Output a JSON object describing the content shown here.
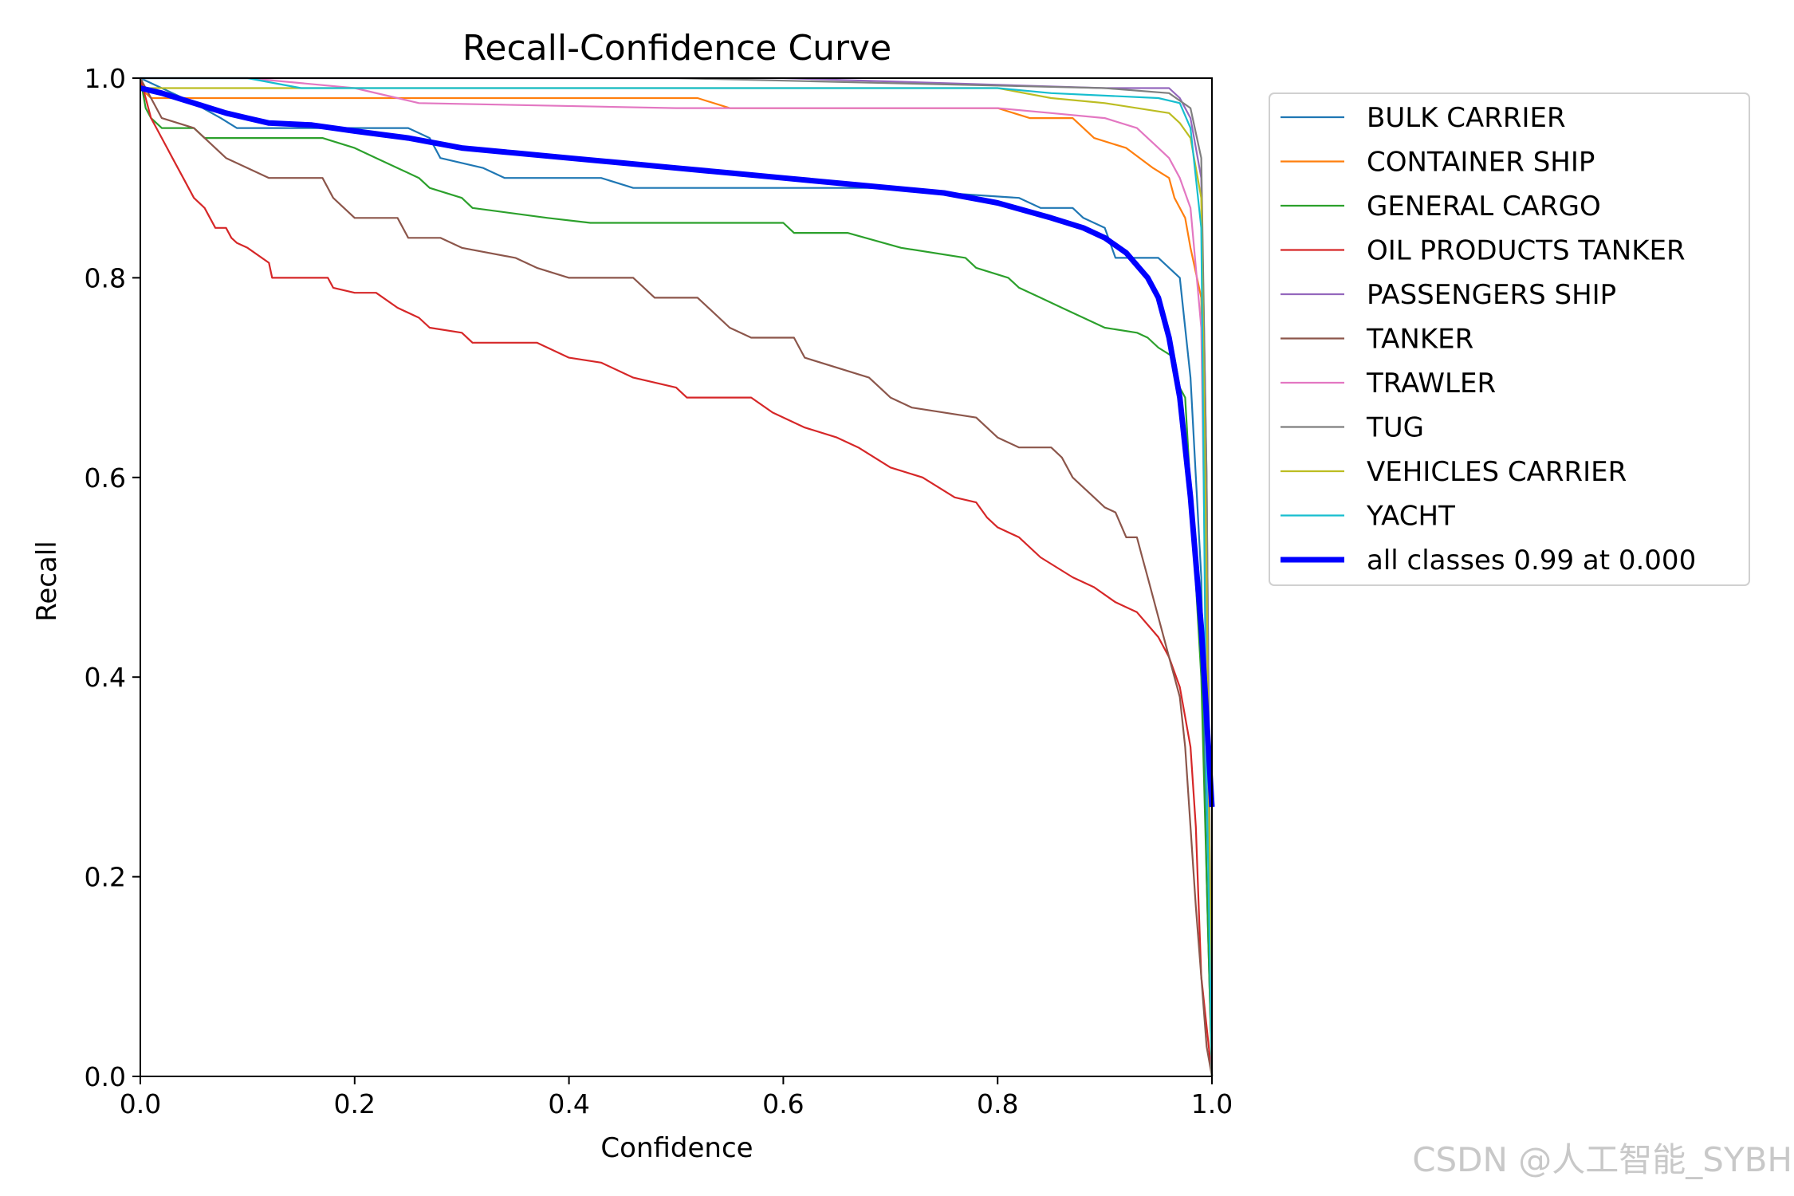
{
  "chart_data": {
    "type": "line",
    "title": "Recall-Confidence Curve",
    "xlabel": "Confidence",
    "ylabel": "Recall",
    "xlim": [
      0,
      1
    ],
    "ylim": [
      0,
      1
    ],
    "xticks": [
      "0.0",
      "0.2",
      "0.4",
      "0.6",
      "0.8",
      "1.0"
    ],
    "yticks": [
      "0.0",
      "0.2",
      "0.4",
      "0.6",
      "0.8",
      "1.0"
    ],
    "grid": false,
    "legend_position": "outside-right",
    "series": [
      {
        "name": "BULK CARRIER",
        "color": "#1f77b4",
        "points": [
          [
            0,
            1.0
          ],
          [
            0.02,
            0.99
          ],
          [
            0.05,
            0.975
          ],
          [
            0.075,
            0.96
          ],
          [
            0.09,
            0.95
          ],
          [
            0.25,
            0.95
          ],
          [
            0.27,
            0.94
          ],
          [
            0.28,
            0.92
          ],
          [
            0.32,
            0.91
          ],
          [
            0.34,
            0.9
          ],
          [
            0.43,
            0.9
          ],
          [
            0.46,
            0.89
          ],
          [
            0.7,
            0.89
          ],
          [
            0.75,
            0.885
          ],
          [
            0.82,
            0.88
          ],
          [
            0.84,
            0.87
          ],
          [
            0.87,
            0.87
          ],
          [
            0.88,
            0.86
          ],
          [
            0.9,
            0.85
          ],
          [
            0.91,
            0.82
          ],
          [
            0.95,
            0.82
          ],
          [
            0.97,
            0.8
          ],
          [
            0.98,
            0.7
          ],
          [
            0.99,
            0.5
          ],
          [
            0.995,
            0.2
          ],
          [
            1.0,
            0.0
          ]
        ]
      },
      {
        "name": "CONTAINER SHIP",
        "color": "#ff7f0e",
        "points": [
          [
            0,
            0.99
          ],
          [
            0.01,
            0.98
          ],
          [
            0.52,
            0.98
          ],
          [
            0.55,
            0.97
          ],
          [
            0.8,
            0.97
          ],
          [
            0.83,
            0.96
          ],
          [
            0.87,
            0.96
          ],
          [
            0.89,
            0.94
          ],
          [
            0.92,
            0.93
          ],
          [
            0.945,
            0.91
          ],
          [
            0.96,
            0.9
          ],
          [
            0.965,
            0.88
          ],
          [
            0.975,
            0.86
          ],
          [
            0.98,
            0.83
          ],
          [
            0.99,
            0.78
          ],
          [
            0.995,
            0.5
          ],
          [
            1.0,
            0.0
          ]
        ]
      },
      {
        "name": "GENERAL CARGO",
        "color": "#2ca02c",
        "points": [
          [
            0,
            1.0
          ],
          [
            0.005,
            0.97
          ],
          [
            0.01,
            0.96
          ],
          [
            0.02,
            0.95
          ],
          [
            0.05,
            0.95
          ],
          [
            0.06,
            0.94
          ],
          [
            0.17,
            0.94
          ],
          [
            0.2,
            0.93
          ],
          [
            0.22,
            0.92
          ],
          [
            0.24,
            0.91
          ],
          [
            0.26,
            0.9
          ],
          [
            0.27,
            0.89
          ],
          [
            0.3,
            0.88
          ],
          [
            0.31,
            0.87
          ],
          [
            0.38,
            0.86
          ],
          [
            0.42,
            0.855
          ],
          [
            0.6,
            0.855
          ],
          [
            0.61,
            0.845
          ],
          [
            0.66,
            0.845
          ],
          [
            0.71,
            0.83
          ],
          [
            0.77,
            0.82
          ],
          [
            0.78,
            0.81
          ],
          [
            0.81,
            0.8
          ],
          [
            0.82,
            0.79
          ],
          [
            0.84,
            0.78
          ],
          [
            0.86,
            0.77
          ],
          [
            0.88,
            0.76
          ],
          [
            0.9,
            0.75
          ],
          [
            0.93,
            0.745
          ],
          [
            0.94,
            0.74
          ],
          [
            0.95,
            0.73
          ],
          [
            0.965,
            0.72
          ],
          [
            0.97,
            0.69
          ],
          [
            0.975,
            0.68
          ],
          [
            0.99,
            0.4
          ],
          [
            1.0,
            0.0
          ]
        ]
      },
      {
        "name": "OIL PRODUCTS TANKER",
        "color": "#d62728",
        "points": [
          [
            0,
            1.0
          ],
          [
            0.005,
            0.98
          ],
          [
            0.01,
            0.96
          ],
          [
            0.015,
            0.95
          ],
          [
            0.02,
            0.94
          ],
          [
            0.025,
            0.93
          ],
          [
            0.03,
            0.92
          ],
          [
            0.04,
            0.9
          ],
          [
            0.05,
            0.88
          ],
          [
            0.06,
            0.87
          ],
          [
            0.07,
            0.85
          ],
          [
            0.08,
            0.85
          ],
          [
            0.085,
            0.84
          ],
          [
            0.09,
            0.835
          ],
          [
            0.1,
            0.83
          ],
          [
            0.12,
            0.815
          ],
          [
            0.123,
            0.8
          ],
          [
            0.175,
            0.8
          ],
          [
            0.18,
            0.79
          ],
          [
            0.2,
            0.785
          ],
          [
            0.22,
            0.785
          ],
          [
            0.24,
            0.77
          ],
          [
            0.26,
            0.76
          ],
          [
            0.27,
            0.75
          ],
          [
            0.3,
            0.745
          ],
          [
            0.31,
            0.735
          ],
          [
            0.37,
            0.735
          ],
          [
            0.4,
            0.72
          ],
          [
            0.43,
            0.715
          ],
          [
            0.46,
            0.7
          ],
          [
            0.5,
            0.69
          ],
          [
            0.51,
            0.68
          ],
          [
            0.57,
            0.68
          ],
          [
            0.59,
            0.665
          ],
          [
            0.62,
            0.65
          ],
          [
            0.65,
            0.64
          ],
          [
            0.67,
            0.63
          ],
          [
            0.7,
            0.61
          ],
          [
            0.73,
            0.6
          ],
          [
            0.76,
            0.58
          ],
          [
            0.78,
            0.575
          ],
          [
            0.79,
            0.56
          ],
          [
            0.8,
            0.55
          ],
          [
            0.82,
            0.54
          ],
          [
            0.84,
            0.52
          ],
          [
            0.87,
            0.5
          ],
          [
            0.89,
            0.49
          ],
          [
            0.91,
            0.475
          ],
          [
            0.93,
            0.465
          ],
          [
            0.95,
            0.44
          ],
          [
            0.96,
            0.42
          ],
          [
            0.97,
            0.39
          ],
          [
            0.98,
            0.33
          ],
          [
            0.985,
            0.25
          ],
          [
            0.99,
            0.1
          ],
          [
            1.0,
            0.0
          ]
        ]
      },
      {
        "name": "PASSENGERS SHIP",
        "color": "#9467bd",
        "points": [
          [
            0,
            1.0
          ],
          [
            0.6,
            1.0
          ],
          [
            0.9,
            0.99
          ],
          [
            0.96,
            0.99
          ],
          [
            0.97,
            0.98
          ],
          [
            0.98,
            0.96
          ],
          [
            0.99,
            0.9
          ],
          [
            0.995,
            0.6
          ],
          [
            1.0,
            0.0
          ]
        ]
      },
      {
        "name": "TANKER",
        "color": "#8c564b",
        "points": [
          [
            0,
            1.0
          ],
          [
            0.01,
            0.98
          ],
          [
            0.02,
            0.96
          ],
          [
            0.05,
            0.95
          ],
          [
            0.06,
            0.94
          ],
          [
            0.08,
            0.92
          ],
          [
            0.1,
            0.91
          ],
          [
            0.12,
            0.9
          ],
          [
            0.17,
            0.9
          ],
          [
            0.18,
            0.88
          ],
          [
            0.19,
            0.87
          ],
          [
            0.2,
            0.86
          ],
          [
            0.24,
            0.86
          ],
          [
            0.25,
            0.84
          ],
          [
            0.28,
            0.84
          ],
          [
            0.3,
            0.83
          ],
          [
            0.35,
            0.82
          ],
          [
            0.37,
            0.81
          ],
          [
            0.4,
            0.8
          ],
          [
            0.46,
            0.8
          ],
          [
            0.48,
            0.78
          ],
          [
            0.52,
            0.78
          ],
          [
            0.55,
            0.75
          ],
          [
            0.57,
            0.74
          ],
          [
            0.61,
            0.74
          ],
          [
            0.62,
            0.72
          ],
          [
            0.68,
            0.7
          ],
          [
            0.69,
            0.69
          ],
          [
            0.7,
            0.68
          ],
          [
            0.72,
            0.67
          ],
          [
            0.78,
            0.66
          ],
          [
            0.8,
            0.64
          ],
          [
            0.82,
            0.63
          ],
          [
            0.85,
            0.63
          ],
          [
            0.86,
            0.62
          ],
          [
            0.87,
            0.6
          ],
          [
            0.88,
            0.59
          ],
          [
            0.89,
            0.58
          ],
          [
            0.9,
            0.57
          ],
          [
            0.91,
            0.565
          ],
          [
            0.92,
            0.54
          ],
          [
            0.93,
            0.54
          ],
          [
            0.935,
            0.52
          ],
          [
            0.94,
            0.5
          ],
          [
            0.95,
            0.46
          ],
          [
            0.96,
            0.42
          ],
          [
            0.97,
            0.38
          ],
          [
            0.975,
            0.33
          ],
          [
            0.98,
            0.25
          ],
          [
            0.985,
            0.17
          ],
          [
            0.99,
            0.1
          ],
          [
            0.995,
            0.03
          ],
          [
            1.0,
            0.0
          ]
        ]
      },
      {
        "name": "TRAWLER",
        "color": "#e377c2",
        "points": [
          [
            0,
            1.0
          ],
          [
            0.1,
            1.0
          ],
          [
            0.2,
            0.99
          ],
          [
            0.24,
            0.98
          ],
          [
            0.26,
            0.975
          ],
          [
            0.5,
            0.97
          ],
          [
            0.8,
            0.97
          ],
          [
            0.85,
            0.965
          ],
          [
            0.9,
            0.96
          ],
          [
            0.93,
            0.95
          ],
          [
            0.95,
            0.93
          ],
          [
            0.96,
            0.92
          ],
          [
            0.97,
            0.9
          ],
          [
            0.98,
            0.87
          ],
          [
            0.99,
            0.75
          ],
          [
            0.995,
            0.4
          ],
          [
            1.0,
            0.0
          ]
        ]
      },
      {
        "name": "TUG",
        "color": "#7f7f7f",
        "points": [
          [
            0,
            1.0
          ],
          [
            0.5,
            1.0
          ],
          [
            0.9,
            0.99
          ],
          [
            0.96,
            0.985
          ],
          [
            0.98,
            0.97
          ],
          [
            0.99,
            0.92
          ],
          [
            0.995,
            0.6
          ],
          [
            1.0,
            0.0
          ]
        ]
      },
      {
        "name": "VEHICLES CARRIER",
        "color": "#bcbd22",
        "points": [
          [
            0,
            0.99
          ],
          [
            0.02,
            0.99
          ],
          [
            0.8,
            0.99
          ],
          [
            0.85,
            0.98
          ],
          [
            0.9,
            0.975
          ],
          [
            0.96,
            0.965
          ],
          [
            0.97,
            0.955
          ],
          [
            0.98,
            0.94
          ],
          [
            0.99,
            0.88
          ],
          [
            0.995,
            0.5
          ],
          [
            1.0,
            0.0
          ]
        ]
      },
      {
        "name": "YACHT",
        "color": "#17becf",
        "points": [
          [
            0,
            1.0
          ],
          [
            0.1,
            1.0
          ],
          [
            0.15,
            0.99
          ],
          [
            0.5,
            0.99
          ],
          [
            0.8,
            0.99
          ],
          [
            0.85,
            0.985
          ],
          [
            0.95,
            0.98
          ],
          [
            0.97,
            0.975
          ],
          [
            0.98,
            0.95
          ],
          [
            0.99,
            0.85
          ],
          [
            0.995,
            0.3
          ],
          [
            1.0,
            0.0
          ]
        ]
      },
      {
        "name": "all classes 0.99 at 0.000",
        "color": "#0000ff",
        "width": 7,
        "points": [
          [
            0,
            0.99
          ],
          [
            0.02,
            0.985
          ],
          [
            0.05,
            0.975
          ],
          [
            0.08,
            0.965
          ],
          [
            0.1,
            0.96
          ],
          [
            0.12,
            0.955
          ],
          [
            0.16,
            0.953
          ],
          [
            0.2,
            0.947
          ],
          [
            0.25,
            0.94
          ],
          [
            0.3,
            0.93
          ],
          [
            0.35,
            0.925
          ],
          [
            0.4,
            0.92
          ],
          [
            0.45,
            0.915
          ],
          [
            0.5,
            0.91
          ],
          [
            0.55,
            0.905
          ],
          [
            0.6,
            0.9
          ],
          [
            0.65,
            0.895
          ],
          [
            0.7,
            0.89
          ],
          [
            0.75,
            0.885
          ],
          [
            0.8,
            0.875
          ],
          [
            0.85,
            0.86
          ],
          [
            0.88,
            0.85
          ],
          [
            0.9,
            0.84
          ],
          [
            0.92,
            0.825
          ],
          [
            0.94,
            0.8
          ],
          [
            0.95,
            0.78
          ],
          [
            0.96,
            0.74
          ],
          [
            0.97,
            0.68
          ],
          [
            0.98,
            0.58
          ],
          [
            0.99,
            0.45
          ],
          [
            1.0,
            0.27
          ]
        ]
      }
    ]
  },
  "watermark": "CSDN @人工智能_SYBH"
}
